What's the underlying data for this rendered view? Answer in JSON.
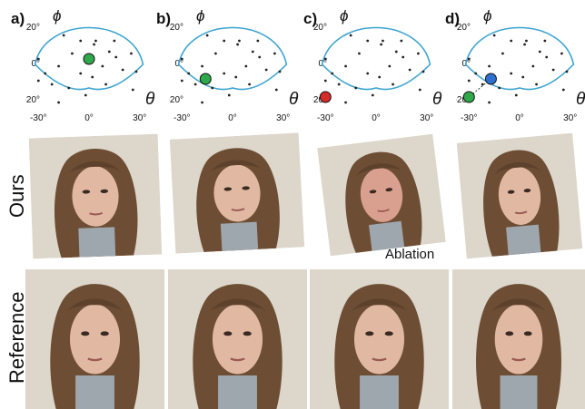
{
  "panels": [
    {
      "label": "a)",
      "y_ticks": [
        "20°",
        "0°",
        "-20°"
      ],
      "x_ticks": [
        "-30°",
        "0°",
        "30°"
      ],
      "y_symbol": "ϕ",
      "x_symbol": "θ"
    },
    {
      "label": "b)",
      "y_ticks": [
        "20°",
        "0°",
        "-20°"
      ],
      "x_ticks": [
        "-30°",
        "0°",
        "30°"
      ],
      "y_symbol": "ϕ",
      "x_symbol": "θ"
    },
    {
      "label": "c)",
      "y_ticks": [
        "20°",
        "0°",
        "-20°"
      ],
      "x_ticks": [
        "-30°",
        "0°",
        "30°"
      ],
      "y_symbol": "ϕ",
      "x_symbol": "θ"
    },
    {
      "label": "d)",
      "y_ticks": [
        "20°",
        "0°",
        "-20°"
      ],
      "x_ticks": [
        "-30°",
        "0°",
        "30°"
      ],
      "y_symbol": "ϕ",
      "x_symbol": "θ"
    }
  ],
  "chart_data": [
    {
      "type": "scatter",
      "panel": "a)",
      "xlabel": "θ",
      "ylabel": "ϕ",
      "xlim": [
        -35,
        35
      ],
      "ylim": [
        -25,
        25
      ],
      "selected": [
        {
          "theta": 0,
          "phi": 2,
          "color": "#2ea84a"
        }
      ]
    },
    {
      "type": "scatter",
      "panel": "b)",
      "xlabel": "θ",
      "ylabel": "ϕ",
      "xlim": [
        -35,
        35
      ],
      "ylim": [
        -25,
        25
      ],
      "selected": [
        {
          "theta": -16,
          "phi": -9,
          "color": "#2ea84a"
        }
      ]
    },
    {
      "type": "scatter",
      "panel": "c)",
      "xlabel": "θ",
      "ylabel": "ϕ",
      "xlim": [
        -35,
        35
      ],
      "ylim": [
        -25,
        25
      ],
      "selected": [
        {
          "theta": -30,
          "phi": -19,
          "color": "#d42a2a"
        }
      ]
    },
    {
      "type": "scatter",
      "panel": "d)",
      "xlabel": "θ",
      "ylabel": "ϕ",
      "xlim": [
        -35,
        35
      ],
      "ylim": [
        -25,
        25
      ],
      "selected": [
        {
          "theta": -17,
          "phi": -9,
          "color": "#2f6fcf"
        },
        {
          "theta": -30,
          "phi": -19,
          "color": "#2ea84a"
        }
      ]
    }
  ],
  "sample_points": [
    [
      4,
      12
    ],
    [
      3,
      10
    ],
    [
      -15,
      15
    ],
    [
      -5,
      12
    ],
    [
      15,
      12
    ],
    [
      25,
      5
    ],
    [
      -30,
      2
    ],
    [
      -10,
      5
    ],
    [
      12,
      6
    ],
    [
      -18,
      -2
    ],
    [
      8,
      -2
    ],
    [
      20,
      -4
    ],
    [
      -5,
      -6
    ],
    [
      2,
      -8
    ],
    [
      28,
      -5
    ],
    [
      -30,
      -10
    ],
    [
      -22,
      -12
    ],
    [
      -12,
      -14
    ],
    [
      10,
      -12
    ],
    [
      -2,
      -18
    ],
    [
      -18,
      -22
    ],
    [
      26,
      -15
    ],
    [
      -26,
      -6
    ],
    [
      16,
      3
    ]
  ],
  "colors": {
    "fov_outline": "#3aa3cf",
    "dot": "#222222",
    "green": "#2ea84a",
    "red": "#d42a2a",
    "blue": "#2f6fcf"
  },
  "rows": {
    "ours": "Ours",
    "reference": "Reference"
  },
  "ablation_label": "Ablation"
}
